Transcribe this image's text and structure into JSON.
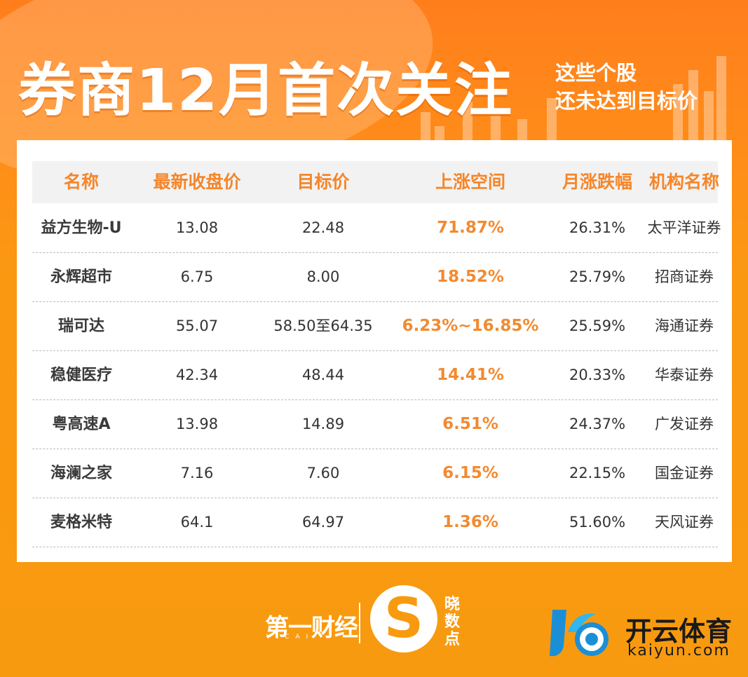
{
  "header": {
    "title": "券商12月首次关注",
    "subtitle_line1": "这些个股",
    "subtitle_line2": "还未达到目标价"
  },
  "table": {
    "columns": [
      "名称",
      "最新收盘价",
      "目标价",
      "上涨空间",
      "月涨跌幅",
      "机构名称"
    ],
    "rows": [
      {
        "name": "益方生物-U",
        "close": "13.08",
        "target": "22.48",
        "upside": "71.87%",
        "monthly": "26.31%",
        "broker": "太平洋证券"
      },
      {
        "name": "永辉超市",
        "close": "6.75",
        "target": "8.00",
        "upside": "18.52%",
        "monthly": "25.79%",
        "broker": "招商证券"
      },
      {
        "name": "瑞可达",
        "close": "55.07",
        "target": "58.50至64.35",
        "upside": "6.23%~16.85%",
        "monthly": "25.59%",
        "broker": "海通证券"
      },
      {
        "name": "稳健医疗",
        "close": "42.34",
        "target": "48.44",
        "upside": "14.41%",
        "monthly": "20.33%",
        "broker": "华泰证券"
      },
      {
        "name": "粤高速A",
        "close": "13.98",
        "target": "14.89",
        "upside": "6.51%",
        "monthly": "24.37%",
        "broker": "广发证券"
      },
      {
        "name": "海澜之家",
        "close": "7.16",
        "target": "7.60",
        "upside": "6.15%",
        "monthly": "22.15%",
        "broker": "国金证券"
      },
      {
        "name": "麦格米特",
        "close": "64.1",
        "target": "64.97",
        "upside": "1.36%",
        "monthly": "51.60%",
        "broker": "天风证券"
      }
    ]
  },
  "footer": {
    "yicai_logo": "第一财经",
    "yicai_sub": "YICAI",
    "xs_glyph": "S",
    "xs_text_1": "晓",
    "xs_text_2": "数",
    "xs_text_3": "点",
    "watermark_name": "开云体育",
    "watermark_url": "kaiyun.com"
  },
  "colors": {
    "background": "#f89a0f",
    "accent": "#f28a30",
    "header_row": "#f2f2f2"
  }
}
